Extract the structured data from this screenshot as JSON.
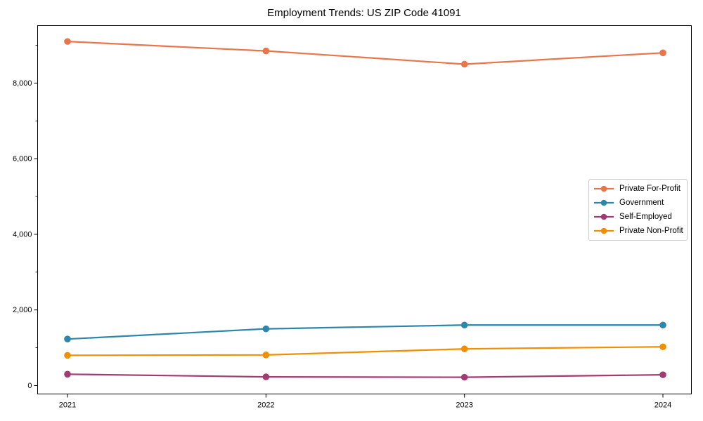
{
  "page": {
    "background_color": "#ffffff",
    "text_color": "#000000",
    "axis_color": "#000000"
  },
  "chart_data": {
    "type": "line",
    "title": "Employment Trends: US ZIP Code 41091",
    "xlabel": "",
    "ylabel": "",
    "x": [
      2021,
      2022,
      2023,
      2024
    ],
    "x_tick_labels": [
      "2021",
      "2022",
      "2023",
      "2024"
    ],
    "yticks": [
      0,
      2000,
      4000,
      6000,
      8000
    ],
    "ytick_labels": [
      "0",
      "2,000",
      "4,000",
      "6,000",
      "8,000"
    ],
    "minor_yticks": [
      1000,
      3000,
      5000,
      7000,
      9000
    ],
    "ylim": [
      -223,
      9520
    ],
    "grid": false,
    "legend_position": "center-right",
    "marker": "o",
    "series": [
      {
        "name": "Private For-Profit",
        "color": "#e8764b",
        "values": [
          9100,
          8850,
          8500,
          8800
        ]
      },
      {
        "name": "Government",
        "color": "#2e86ab",
        "values": [
          1230,
          1500,
          1600,
          1600
        ]
      },
      {
        "name": "Self-Employed",
        "color": "#a23b72",
        "values": [
          300,
          230,
          220,
          285
        ]
      },
      {
        "name": "Private Non-Profit",
        "color": "#f18f01",
        "values": [
          800,
          810,
          970,
          1025
        ]
      }
    ]
  }
}
